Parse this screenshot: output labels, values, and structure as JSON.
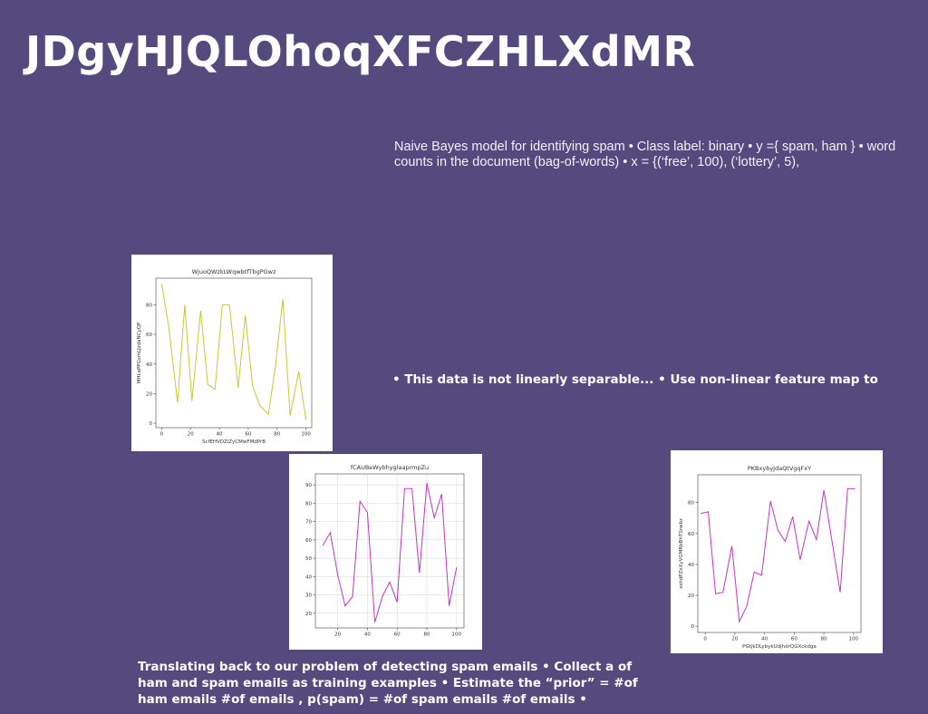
{
  "slide": {
    "title": "JDgyHJQLOhoqXFCZHLXdMR",
    "text1": "Naive Bayes model for identifying spam • Class label: binary • y ={ spam, ham } • word counts in the document (bag-of-words) • x = {(‘free’, 100), (‘lottery’, 5),",
    "text2": "• This data is not linearly separable... • Use non-linear feature map to",
    "text3": "Translating back to our problem of detecting spam emails • Collect a of ham and spam emails as training examples • Estimate the “prior” = #of ham emails #of emails , p(spam) = #of spam emails #of emails •"
  },
  "chart_data": [
    {
      "type": "line",
      "title": "WjuoQWzkLWqwbtfTbgPGwz",
      "xlabel": "ScfEHVDZiZyCMwFMdPrB",
      "ylabel": "MHLaPPGsmLJzdaNCyQP",
      "color": "#c8c832",
      "grid": false,
      "xlim": [
        -4,
        104
      ],
      "ylim": [
        -3,
        98
      ],
      "xticks": [
        0,
        20,
        40,
        60,
        80,
        100
      ],
      "yticks": [
        0,
        20,
        40,
        60,
        80
      ],
      "series": [
        {
          "x": [
            0,
            5,
            11,
            16,
            21,
            27,
            32,
            37,
            42,
            47,
            53,
            58,
            63,
            68,
            74,
            79,
            84,
            89,
            95,
            100
          ],
          "values": [
            94,
            65,
            14,
            80,
            15,
            76,
            26,
            23,
            80,
            80,
            24,
            73,
            25,
            12,
            6,
            40,
            84,
            5,
            35,
            2
          ]
        }
      ]
    },
    {
      "type": "line",
      "title": "fCAUBeWybhyglaaprmpZu",
      "xlabel": "",
      "ylabel": "",
      "color": "#c832c8",
      "grid": true,
      "xlim": [
        5,
        105
      ],
      "ylim": [
        12,
        96
      ],
      "xticks": [
        20,
        40,
        60,
        80,
        100
      ],
      "yticks": [
        20,
        30,
        40,
        50,
        60,
        70,
        80,
        90
      ],
      "series": [
        {
          "x": [
            10,
            15,
            20,
            25,
            30,
            35,
            40,
            45,
            50,
            55,
            60,
            65,
            70,
            75,
            80,
            85,
            90,
            95,
            100
          ],
          "values": [
            57,
            64,
            41,
            24,
            29,
            81,
            75,
            15,
            29,
            37,
            26,
            88,
            88,
            42,
            91,
            72,
            85,
            24,
            45
          ]
        }
      ]
    },
    {
      "type": "line",
      "title": "PKBxybyJdaQtVgqFxY",
      "xlabel": "PGtjkDLybykUdjhdrQGXckdga",
      "ylabel": "xshdPZxXyVGMRbBhTSrwbz",
      "color": "#c832c8",
      "grid": false,
      "xlim": [
        -5,
        105
      ],
      "ylim": [
        -4,
        98
      ],
      "xticks": [
        0,
        20,
        40,
        60,
        80,
        100
      ],
      "yticks": [
        0,
        20,
        40,
        60,
        80
      ],
      "series": [
        {
          "x": [
            -3,
            2,
            7,
            12,
            18,
            23,
            28,
            33,
            38,
            44,
            49,
            54,
            59,
            64,
            70,
            75,
            80,
            86,
            91,
            96,
            101
          ],
          "values": [
            73,
            74,
            21,
            22,
            52,
            3,
            13,
            35,
            33,
            81,
            62,
            55,
            71,
            43,
            68,
            56,
            88,
            52,
            22,
            89,
            89
          ]
        }
      ]
    }
  ]
}
